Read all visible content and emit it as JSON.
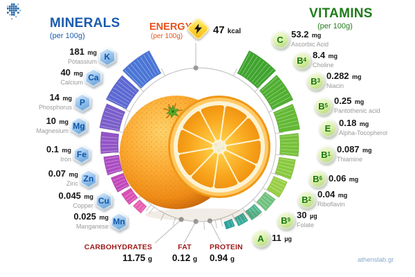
{
  "logo_icon": "pixel-grid-logo",
  "watermark": "athenslab.gr",
  "minerals": {
    "title": "MINERALS",
    "subtitle": "(per 100g)",
    "title_color": "#1a5cad",
    "items": [
      {
        "symbol": "K",
        "value": "181",
        "unit": "mg",
        "name": "Potassium",
        "color": "#4a75d6"
      },
      {
        "symbol": "Ca",
        "value": "40",
        "unit": "mg",
        "name": "Calcium",
        "color": "#5c68d2"
      },
      {
        "symbol": "P",
        "value": "14",
        "unit": "mg",
        "name": "Phosphorus",
        "color": "#7a5ecb"
      },
      {
        "symbol": "Mg",
        "value": "10",
        "unit": "mg",
        "name": "Magnesium",
        "color": "#9254c6"
      },
      {
        "symbol": "Fe",
        "value": "0.1",
        "unit": "mg",
        "name": "Iron",
        "color": "#ac4cc2"
      },
      {
        "symbol": "Zn",
        "value": "0.07",
        "unit": "mg",
        "name": "Zinc",
        "color": "#c247bb"
      },
      {
        "symbol": "Cu",
        "value": "0.045",
        "unit": "mg",
        "name": "Copper",
        "color": "#d94fb5"
      },
      {
        "symbol": "Mn",
        "value": "0.025",
        "unit": "mg",
        "name": "Manganese",
        "color": "#e85cb0"
      }
    ]
  },
  "vitamins": {
    "title": "VITAMINS",
    "subtitle": "(per 100g)",
    "title_color": "#1f7d1a",
    "items": [
      {
        "symbol": "C",
        "sub": "",
        "value": "53.2",
        "unit": "mg",
        "name": "Ascorbic Acid",
        "color": "#3fa42e"
      },
      {
        "symbol": "B",
        "sub": "4",
        "value": "8.4",
        "unit": "mg",
        "name": "Choline",
        "color": "#4faf30"
      },
      {
        "symbol": "B",
        "sub": "3",
        "value": "0.282",
        "unit": "mg",
        "name": "Niacin",
        "color": "#63b934"
      },
      {
        "symbol": "B",
        "sub": "5",
        "value": "0.25",
        "unit": "mg",
        "name": "Pantothenic acid",
        "color": "#76c139"
      },
      {
        "symbol": "E",
        "sub": "",
        "value": "0.18",
        "unit": "mg",
        "name": "Alpha-Tocopherol",
        "color": "#89c93e"
      },
      {
        "symbol": "B",
        "sub": "1",
        "value": "0.087",
        "unit": "mg",
        "name": "Thiamine",
        "color": "#98cf45"
      },
      {
        "symbol": "B",
        "sub": "6",
        "value": "0.06",
        "unit": "mg",
        "name": "",
        "color": "#6fc17e"
      },
      {
        "symbol": "B",
        "sub": "2",
        "value": "0.04",
        "unit": "mg",
        "name": "Riboflavin",
        "color": "#4fb68f"
      },
      {
        "symbol": "B",
        "sub": "9",
        "value": "30",
        "unit": "µg",
        "name": "Folate",
        "color": "#35ac9b"
      },
      {
        "symbol": "A",
        "sub": "",
        "value": "11",
        "unit": "µg",
        "name": "",
        "color": "#2ba49e"
      }
    ]
  },
  "energy": {
    "title": "ENERGY",
    "subtitle": "(per 100g)",
    "value": "47",
    "unit": "kcal",
    "icon": "lightning-bolt",
    "title_color": "#e8511d"
  },
  "macros": {
    "label_color": "#9e1a1a",
    "items": [
      {
        "label": "CARBOHYDRATES",
        "value": "11.75",
        "unit": "g"
      },
      {
        "label": "FAT",
        "value": "0.12",
        "unit": "g"
      },
      {
        "label": "PROTEIN",
        "value": "0.94",
        "unit": "g"
      }
    ]
  }
}
